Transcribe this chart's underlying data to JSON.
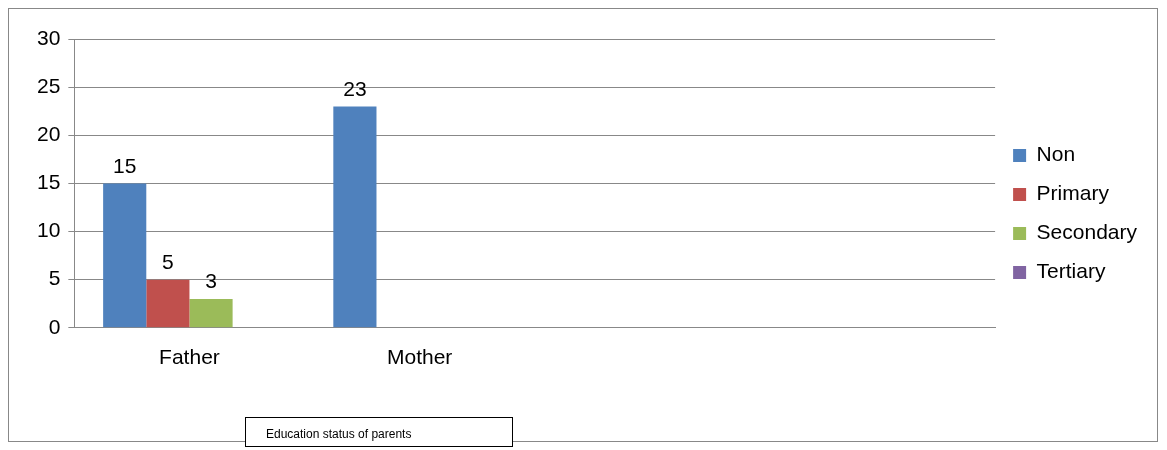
{
  "chart_data": {
    "type": "bar",
    "categories": [
      "Father",
      "Mother",
      null,
      null
    ],
    "series": [
      {
        "name": "Non",
        "color": "#4f81bd",
        "values": [
          15,
          23,
          null,
          null
        ]
      },
      {
        "name": "Primary",
        "color": "#c0504d",
        "values": [
          5,
          null,
          null,
          null
        ]
      },
      {
        "name": "Secondary",
        "color": "#9bbb59",
        "values": [
          3,
          null,
          null,
          null
        ]
      },
      {
        "name": "Tertiary",
        "color": "#8064a2",
        "values": [
          null,
          null,
          null,
          null
        ]
      }
    ],
    "ylim": [
      0,
      30
    ],
    "yticks": [
      0,
      5,
      10,
      15,
      20,
      25,
      30
    ],
    "grid": "y",
    "legend": "right",
    "data_labels": true,
    "annotations": [
      "Education status of parents"
    ]
  }
}
